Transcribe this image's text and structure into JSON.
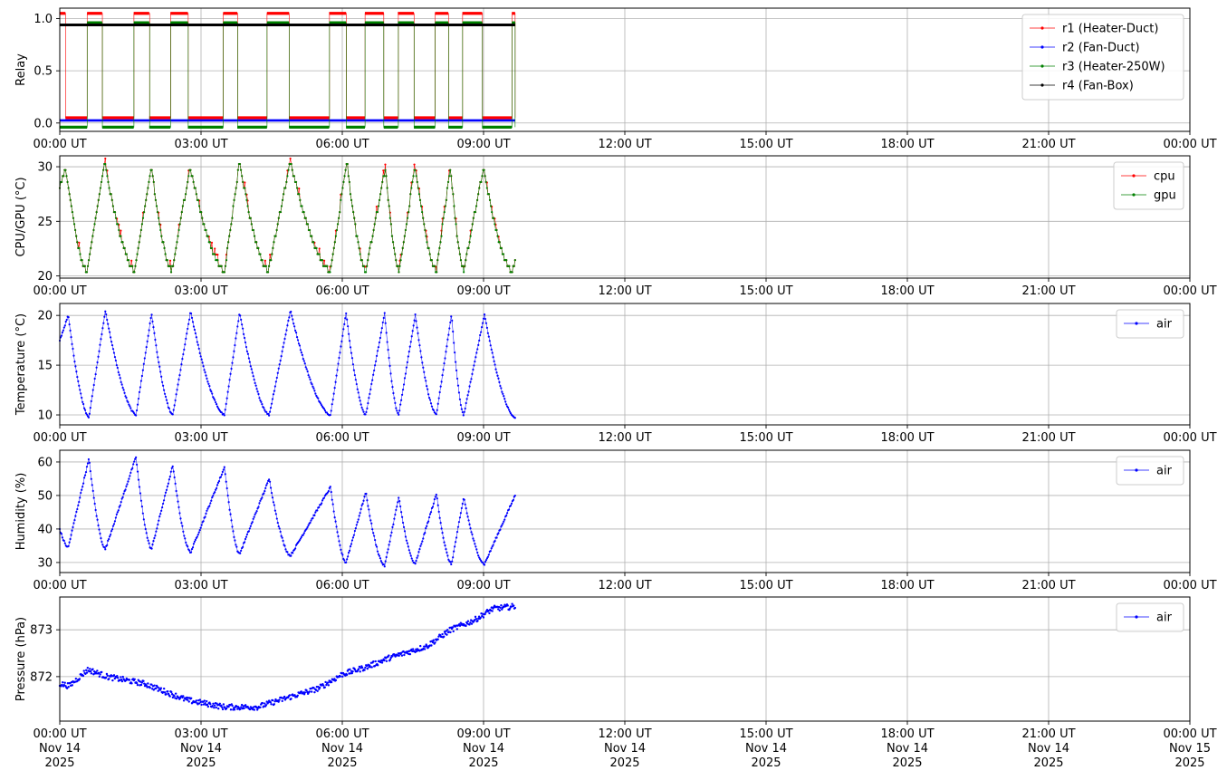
{
  "chart_data": [
    {
      "type": "line",
      "ylabel": "Relay",
      "ylim": [
        -0.08,
        1.1
      ],
      "yticks": [
        0.0,
        0.5,
        1.0
      ],
      "ytick_labels": [
        "0.0",
        "0.5",
        "1.0"
      ],
      "xlim_hours": [
        0,
        24
      ],
      "xticks_hours": [
        0,
        3,
        6,
        9,
        12,
        15,
        18,
        21,
        24
      ],
      "xtick_labels": [
        "00:00 UT",
        "03:00 UT",
        "06:00 UT",
        "09:00 UT",
        "12:00 UT",
        "15:00 UT",
        "18:00 UT",
        "21:00 UT",
        "00:00 UT"
      ],
      "grid": true,
      "legend": "top-right",
      "series": [
        {
          "name": "r1 (Heater-Duct)",
          "color": "#ff0000",
          "on_intervals_hours": [
            [
              0.0,
              0.12
            ],
            [
              0.58,
              0.9
            ],
            [
              1.57,
              1.9
            ],
            [
              2.35,
              2.72
            ],
            [
              3.47,
              3.77
            ],
            [
              4.4,
              4.87
            ],
            [
              5.72,
              6.08
            ],
            [
              6.48,
              6.88
            ],
            [
              7.18,
              7.52
            ],
            [
              7.97,
              8.25
            ],
            [
              8.55,
              8.97
            ],
            [
              9.6,
              9.67
            ]
          ],
          "on_value": 1.05,
          "off_value": 0.05
        },
        {
          "name": "r2 (Fan-Duct)",
          "color": "#0000ff",
          "constant": 0.025
        },
        {
          "name": "r3 (Heater-250W)",
          "color": "#008000",
          "on_intervals_hours": [
            [
              0.58,
              0.9
            ],
            [
              1.57,
              1.9
            ],
            [
              2.35,
              2.72
            ],
            [
              3.47,
              3.77
            ],
            [
              4.4,
              4.87
            ],
            [
              5.72,
              6.08
            ],
            [
              6.48,
              6.88
            ],
            [
              7.18,
              7.52
            ],
            [
              7.97,
              8.25
            ],
            [
              8.55,
              8.97
            ],
            [
              9.6,
              9.67
            ]
          ],
          "on_value": 0.96,
          "off_value": -0.04
        },
        {
          "name": "r4 (Fan-Box)",
          "color": "#000000",
          "constant": 0.94
        }
      ],
      "data_end_hours": 9.67
    },
    {
      "type": "line",
      "ylabel": "CPU/GPU (°C)",
      "ylim": [
        19.8,
        31
      ],
      "yticks": [
        20,
        25,
        30
      ],
      "ytick_labels": [
        "20",
        "25",
        "30"
      ],
      "xlim_hours": [
        0,
        24
      ],
      "xticks_hours": [
        0,
        3,
        6,
        9,
        12,
        15,
        18,
        21,
        24
      ],
      "xtick_labels": [
        "00:00 UT",
        "03:00 UT",
        "06:00 UT",
        "09:00 UT",
        "12:00 UT",
        "15:00 UT",
        "18:00 UT",
        "21:00 UT",
        "00:00 UT"
      ],
      "grid": true,
      "legend": "top-right",
      "series": [
        {
          "name": "cpu",
          "color": "#ff0000"
        },
        {
          "name": "gpu",
          "color": "#008000"
        }
      ],
      "cycles": [
        {
          "min_t": 0.0,
          "min_v": 28.0,
          "max_t": 0.12,
          "max_v": 30.0
        },
        {
          "min_t": 0.58,
          "min_v": 20.5,
          "max_t": 0.95,
          "max_v": 30.5
        },
        {
          "min_t": 1.6,
          "min_v": 20.5,
          "max_t": 1.95,
          "max_v": 30.0
        },
        {
          "min_t": 2.38,
          "min_v": 20.5,
          "max_t": 2.77,
          "max_v": 30.0
        },
        {
          "min_t": 3.5,
          "min_v": 20.5,
          "max_t": 3.82,
          "max_v": 30.5
        },
        {
          "min_t": 4.43,
          "min_v": 20.5,
          "max_t": 4.9,
          "max_v": 30.5
        },
        {
          "min_t": 5.75,
          "min_v": 20.5,
          "max_t": 6.1,
          "max_v": 30.5
        },
        {
          "min_t": 6.5,
          "min_v": 20.5,
          "max_t": 6.92,
          "max_v": 30.0
        },
        {
          "min_t": 7.2,
          "min_v": 20.5,
          "max_t": 7.55,
          "max_v": 30.0
        },
        {
          "min_t": 8.0,
          "min_v": 20.5,
          "max_t": 8.3,
          "max_v": 30.0
        },
        {
          "min_t": 8.58,
          "min_v": 20.5,
          "max_t": 9.0,
          "max_v": 30.0
        },
        {
          "min_t": 9.6,
          "min_v": 20.5,
          "max_t": 9.67,
          "max_v": 21.3
        }
      ]
    },
    {
      "type": "line",
      "ylabel": "Temperature (°C)",
      "ylim": [
        9,
        21.2
      ],
      "yticks": [
        10,
        15,
        20
      ],
      "ytick_labels": [
        "10",
        "15",
        "20"
      ],
      "xlim_hours": [
        0,
        24
      ],
      "xticks_hours": [
        0,
        3,
        6,
        9,
        12,
        15,
        18,
        21,
        24
      ],
      "xtick_labels": [
        "00:00 UT",
        "03:00 UT",
        "06:00 UT",
        "09:00 UT",
        "12:00 UT",
        "15:00 UT",
        "18:00 UT",
        "21:00 UT",
        "00:00 UT"
      ],
      "grid": true,
      "legend": "top-right",
      "series": [
        {
          "name": "air",
          "color": "#0000ff"
        }
      ],
      "cycles": [
        {
          "min_t": 0.0,
          "min_v": 17.5,
          "max_t": 0.18,
          "max_v": 20.0
        },
        {
          "min_t": 0.62,
          "min_v": 9.8,
          "max_t": 0.97,
          "max_v": 20.5
        },
        {
          "min_t": 1.62,
          "min_v": 10.0,
          "max_t": 1.95,
          "max_v": 20.2
        },
        {
          "min_t": 2.4,
          "min_v": 10.0,
          "max_t": 2.78,
          "max_v": 20.4
        },
        {
          "min_t": 3.5,
          "min_v": 10.0,
          "max_t": 3.82,
          "max_v": 20.3
        },
        {
          "min_t": 4.45,
          "min_v": 10.0,
          "max_t": 4.9,
          "max_v": 20.5
        },
        {
          "min_t": 5.75,
          "min_v": 10.0,
          "max_t": 6.08,
          "max_v": 20.3
        },
        {
          "min_t": 6.5,
          "min_v": 10.0,
          "max_t": 6.9,
          "max_v": 20.2
        },
        {
          "min_t": 7.2,
          "min_v": 10.0,
          "max_t": 7.55,
          "max_v": 20.1
        },
        {
          "min_t": 8.0,
          "min_v": 10.0,
          "max_t": 8.32,
          "max_v": 20.1
        },
        {
          "min_t": 8.58,
          "min_v": 10.0,
          "max_t": 9.02,
          "max_v": 20.1
        },
        {
          "min_t": 9.67,
          "min_v": 9.7
        }
      ]
    },
    {
      "type": "line",
      "ylabel": "Humidity (%)",
      "ylim": [
        27,
        63.5
      ],
      "yticks": [
        30,
        40,
        50,
        60
      ],
      "ytick_labels": [
        "30",
        "40",
        "50",
        "60"
      ],
      "xlim_hours": [
        0,
        24
      ],
      "xticks_hours": [
        0,
        3,
        6,
        9,
        12,
        15,
        18,
        21,
        24
      ],
      "xtick_labels": [
        "00:00 UT",
        "03:00 UT",
        "06:00 UT",
        "09:00 UT",
        "12:00 UT",
        "15:00 UT",
        "18:00 UT",
        "21:00 UT",
        "00:00 UT"
      ],
      "grid": true,
      "legend": "top-right",
      "series": [
        {
          "name": "air",
          "color": "#0000ff"
        }
      ],
      "cycles": [
        {
          "min_t": 0.0,
          "min_v": 40.0
        },
        {
          "min_t": 0.18,
          "min_v": 34.5,
          "max_t": 0.62,
          "max_v": 61.0
        },
        {
          "min_t": 0.97,
          "min_v": 34.0,
          "max_t": 1.62,
          "max_v": 61.5
        },
        {
          "min_t": 1.95,
          "min_v": 34.0,
          "max_t": 2.4,
          "max_v": 59.0
        },
        {
          "min_t": 2.78,
          "min_v": 33.0,
          "max_t": 3.5,
          "max_v": 58.5
        },
        {
          "min_t": 3.82,
          "min_v": 32.5,
          "max_t": 4.45,
          "max_v": 55.0
        },
        {
          "min_t": 4.9,
          "min_v": 32.0,
          "max_t": 5.75,
          "max_v": 52.5
        },
        {
          "min_t": 6.08,
          "min_v": 30.0,
          "max_t": 6.5,
          "max_v": 51.0
        },
        {
          "min_t": 6.9,
          "min_v": 29.0,
          "max_t": 7.2,
          "max_v": 49.5
        },
        {
          "min_t": 7.55,
          "min_v": 29.5,
          "max_t": 8.0,
          "max_v": 50.5
        },
        {
          "min_t": 8.32,
          "min_v": 29.5,
          "max_t": 8.58,
          "max_v": 49.5
        },
        {
          "min_t": 9.02,
          "min_v": 29.5,
          "max_t": 9.67,
          "max_v": 50.0
        }
      ]
    },
    {
      "type": "scatter",
      "ylabel": "Pressure (hPa)",
      "ylim": [
        871.05,
        873.7
      ],
      "yticks": [
        872,
        873
      ],
      "ytick_labels": [
        "872",
        "873"
      ],
      "xlim_hours": [
        0,
        24
      ],
      "xticks_hours": [
        0,
        3,
        6,
        9,
        12,
        15,
        18,
        21,
        24
      ],
      "xtick_labels": [
        "00:00 UT\nNov 14\n2025",
        "03:00 UT\nNov 14\n2025",
        "06:00 UT\nNov 14\n2025",
        "09:00 UT\nNov 14\n2025",
        "12:00 UT\nNov 14\n2025",
        "15:00 UT\nNov 14\n2025",
        "18:00 UT\nNov 14\n2025",
        "21:00 UT\nNov 14\n2025",
        "00:00 UT\nNov 15\n2025"
      ],
      "grid": true,
      "legend": "top-right",
      "series": [
        {
          "name": "air",
          "color": "#0000ff"
        }
      ],
      "trend": [
        {
          "t": 0.0,
          "v": 871.85
        },
        {
          "t": 0.2,
          "v": 871.8
        },
        {
          "t": 0.6,
          "v": 872.15
        },
        {
          "t": 1.0,
          "v": 872.0
        },
        {
          "t": 1.8,
          "v": 871.85
        },
        {
          "t": 2.7,
          "v": 871.5
        },
        {
          "t": 3.5,
          "v": 871.35
        },
        {
          "t": 4.2,
          "v": 871.35
        },
        {
          "t": 5.0,
          "v": 871.6
        },
        {
          "t": 5.5,
          "v": 871.75
        },
        {
          "t": 6.0,
          "v": 872.05
        },
        {
          "t": 6.5,
          "v": 872.2
        },
        {
          "t": 7.0,
          "v": 872.4
        },
        {
          "t": 7.8,
          "v": 872.65
        },
        {
          "t": 8.3,
          "v": 873.0
        },
        {
          "t": 8.8,
          "v": 873.2
        },
        {
          "t": 9.2,
          "v": 873.45
        },
        {
          "t": 9.67,
          "v": 873.5
        }
      ]
    }
  ]
}
